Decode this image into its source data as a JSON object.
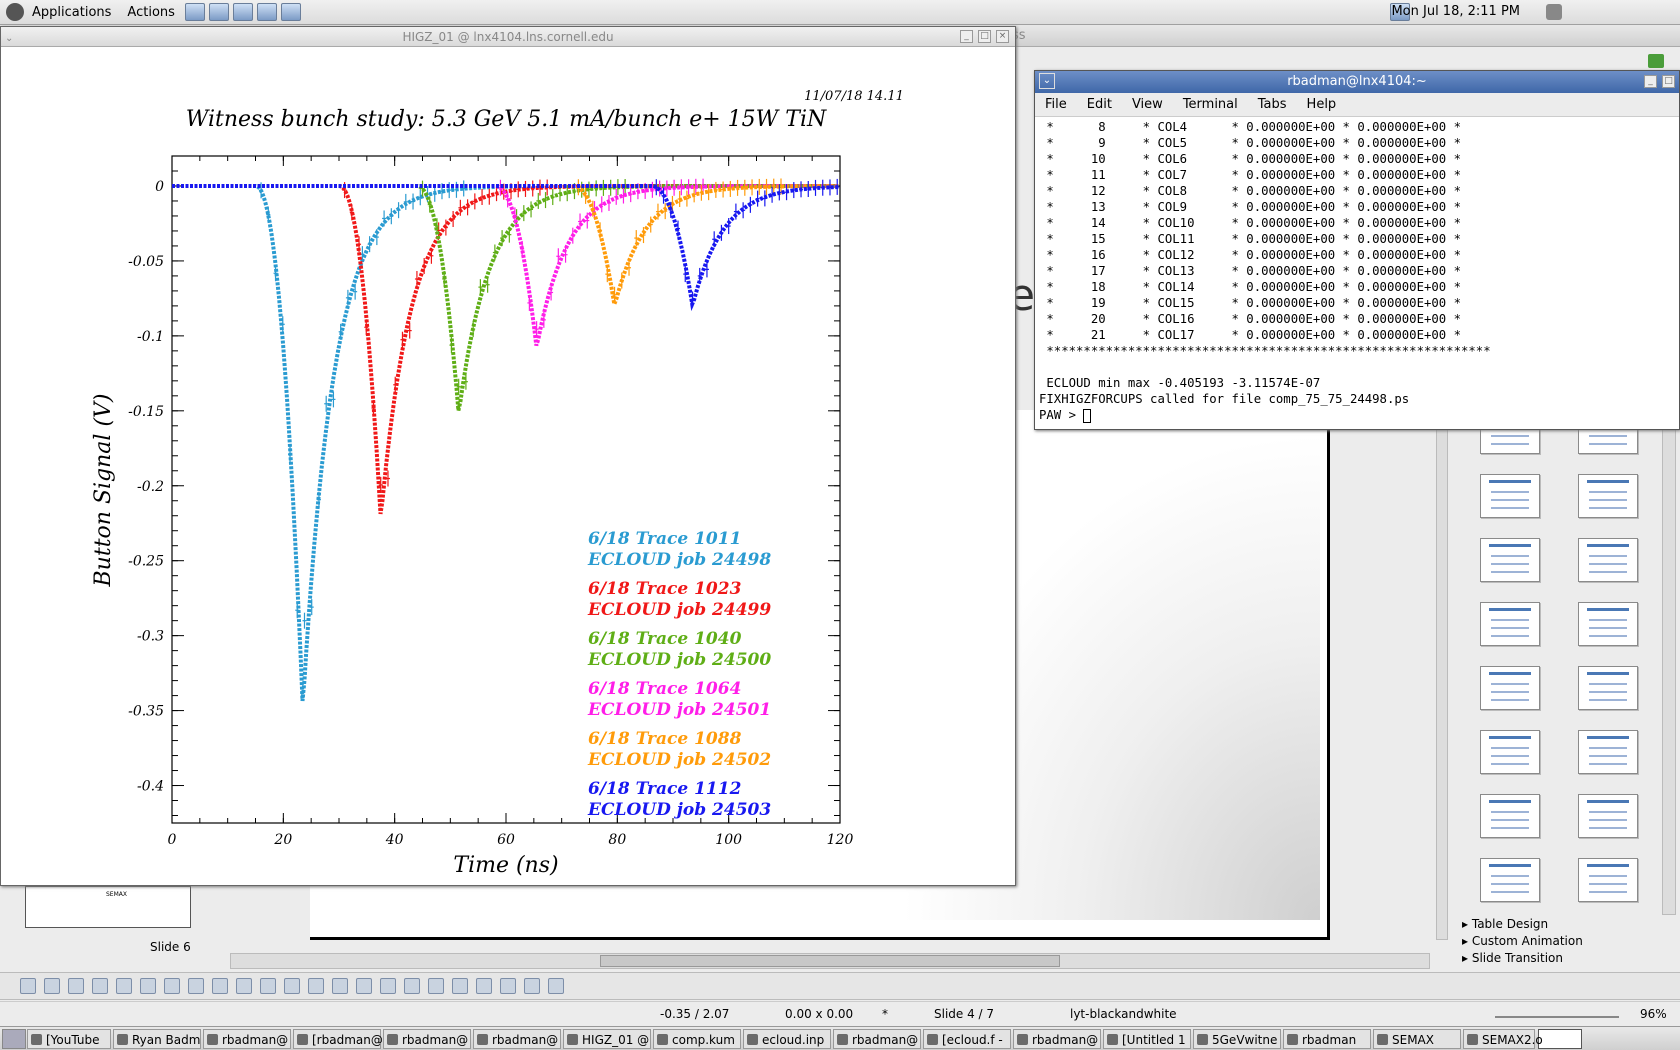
{
  "top_panel": {
    "applications": "Applications",
    "actions": "Actions",
    "clock": "Mon Jul 18,  2:11 PM"
  },
  "impress": {
    "title_fragment": "ss",
    "slide_label": "Slide 6",
    "thumb_label": "SEMAX",
    "task_panes": [
      "Table Design",
      "Custom Animation",
      "Slide Transition"
    ]
  },
  "status_bar": {
    "position": "-0.35 / 2.07",
    "size": "0.00 x 0.00",
    "modified": "*",
    "slide": "Slide 4 / 7",
    "layout": "lyt-blackandwhite",
    "zoom": "96%"
  },
  "taskbar": {
    "items": [
      "[YouTube",
      "Ryan Badm",
      "rbadman@",
      "[rbadman@",
      "rbadman@",
      "rbadman@",
      "HIGZ_01 @",
      "comp.kum",
      "ecloud.inp",
      "rbadman@",
      "[ecloud.f -",
      "rbadman@",
      "[Untitled 1",
      "5GeVwitne",
      "rbadman",
      "SEMAX",
      "SEMAX2.o"
    ]
  },
  "higz": {
    "title": "HIGZ_01 @ lnx4104.lns.cornell.edu"
  },
  "chart_data": {
    "type": "scatter",
    "title": "Witness bunch study: 5.3 GeV 5.1 mA/bunch e+ 15W TiN",
    "timestamp": "11/07/18   14.11",
    "xlabel": "Time (ns)",
    "ylabel": "Button Signal (V)",
    "xlim": [
      0,
      120
    ],
    "ylim": [
      -0.425,
      0.02
    ],
    "xticks": [
      "0",
      "20",
      "40",
      "60",
      "80",
      "100",
      "120"
    ],
    "yticks": [
      "0",
      "-0.05",
      "-0.1",
      "-0.15",
      "-0.2",
      "-0.25",
      "-0.3",
      "-0.35",
      "-0.4"
    ],
    "series": [
      {
        "trace": "6/18 Trace 1011",
        "job": "ECLOUD job 24498",
        "color": "#2a9bd1",
        "peak_time": 23.5,
        "peak_value": -0.348,
        "start": 15
      },
      {
        "trace": "6/18 Trace 1023",
        "job": "ECLOUD job 24499",
        "color": "#f01818",
        "peak_time": 37.5,
        "peak_value": -0.222,
        "start": 30
      },
      {
        "trace": "6/18 Trace 1040",
        "job": "ECLOUD job 24500",
        "color": "#5fae16",
        "peak_time": 51.5,
        "peak_value": -0.152,
        "start": 44
      },
      {
        "trace": "6/18 Trace 1064",
        "job": "ECLOUD job 24501",
        "color": "#ff1ee8",
        "peak_time": 65.5,
        "peak_value": -0.108,
        "start": 58
      },
      {
        "trace": "6/18 Trace 1088",
        "job": "ECLOUD job 24502",
        "color": "#ff9b0a",
        "peak_time": 79.5,
        "peak_value": -0.08,
        "start": 72
      },
      {
        "trace": "6/18 Trace 1112",
        "job": "ECLOUD job 24503",
        "color": "#1818f0",
        "peak_time": 93.5,
        "peak_value": -0.08,
        "start": 86
      }
    ]
  },
  "terminal": {
    "title": "rbadman@lnx4104:~",
    "menu": [
      "File",
      "Edit",
      "View",
      "Terminal",
      "Tabs",
      "Help"
    ],
    "lines": [
      " *      8     * COL4      * 0.000000E+00 * 0.000000E+00 *",
      " *      9     * COL5      * 0.000000E+00 * 0.000000E+00 *",
      " *     10     * COL6      * 0.000000E+00 * 0.000000E+00 *",
      " *     11     * COL7      * 0.000000E+00 * 0.000000E+00 *",
      " *     12     * COL8      * 0.000000E+00 * 0.000000E+00 *",
      " *     13     * COL9      * 0.000000E+00 * 0.000000E+00 *",
      " *     14     * COL10     * 0.000000E+00 * 0.000000E+00 *",
      " *     15     * COL11     * 0.000000E+00 * 0.000000E+00 *",
      " *     16     * COL12     * 0.000000E+00 * 0.000000E+00 *",
      " *     17     * COL13     * 0.000000E+00 * 0.000000E+00 *",
      " *     18     * COL14     * 0.000000E+00 * 0.000000E+00 *",
      " *     19     * COL15     * 0.000000E+00 * 0.000000E+00 *",
      " *     20     * COL16     * 0.000000E+00 * 0.000000E+00 *",
      " *     21     * COL17     * 0.000000E+00 * 0.000000E+00 *",
      " ************************************************************",
      "",
      " ECLOUD min max -0.405193 -3.11574E-07",
      "FIXHIGZFORCUPS called for file comp_75_75_24498.ps",
      "PAW > "
    ]
  }
}
